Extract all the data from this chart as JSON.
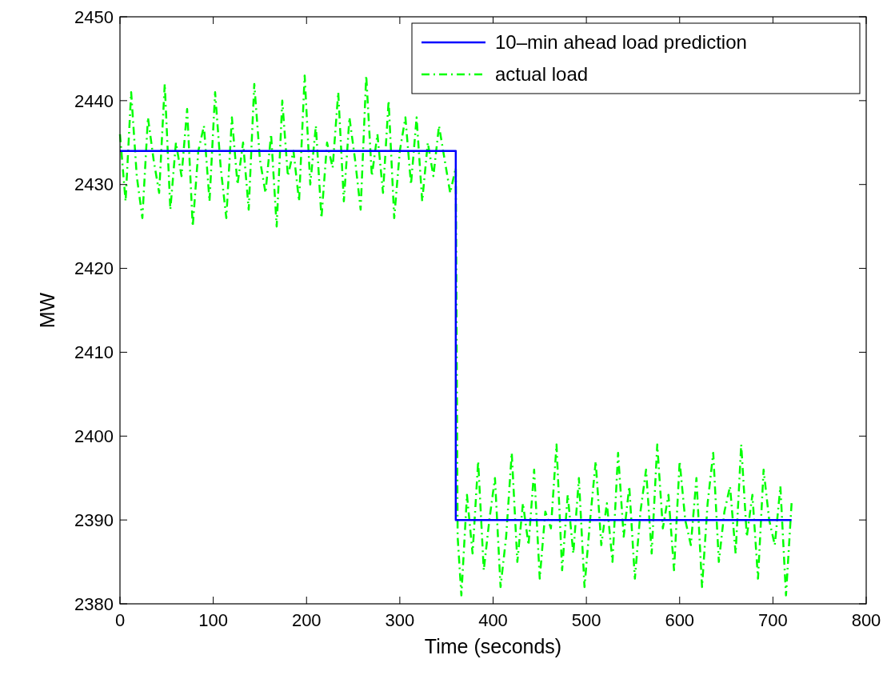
{
  "chart_data": {
    "type": "line",
    "xlabel": "Time (seconds)",
    "ylabel": "MW",
    "xlim": [
      0,
      800
    ],
    "xticks": [
      0,
      100,
      200,
      300,
      400,
      500,
      600,
      700,
      800
    ],
    "ylim": [
      2380,
      2450
    ],
    "yticks": [
      2380,
      2390,
      2400,
      2410,
      2420,
      2430,
      2440,
      2450
    ],
    "legend": "top right",
    "series": [
      {
        "name": "10–min ahead load prediction",
        "color": "#0000ff",
        "line_style": "solid",
        "x": [
          0,
          360,
          360,
          720
        ],
        "values": [
          2434,
          2434,
          2390,
          2390
        ]
      },
      {
        "name": "actual load",
        "color": "#00ff00",
        "line_style": "dashdot",
        "x": [
          0,
          6,
          12,
          18,
          24,
          30,
          36,
          42,
          48,
          54,
          60,
          66,
          72,
          78,
          84,
          90,
          96,
          102,
          108,
          114,
          120,
          126,
          132,
          138,
          144,
          150,
          156,
          162,
          168,
          174,
          180,
          186,
          192,
          198,
          204,
          210,
          216,
          222,
          228,
          234,
          240,
          246,
          252,
          258,
          264,
          270,
          276,
          282,
          288,
          294,
          300,
          306,
          312,
          318,
          324,
          330,
          336,
          342,
          348,
          354,
          360,
          362,
          366,
          372,
          378,
          384,
          390,
          396,
          402,
          408,
          414,
          420,
          426,
          432,
          438,
          444,
          450,
          456,
          462,
          468,
          474,
          480,
          486,
          492,
          498,
          504,
          510,
          516,
          522,
          528,
          534,
          540,
          546,
          552,
          558,
          564,
          570,
          576,
          582,
          588,
          594,
          600,
          606,
          612,
          618,
          624,
          630,
          636,
          642,
          648,
          654,
          660,
          666,
          672,
          678,
          684,
          690,
          696,
          702,
          708,
          714,
          720
        ],
        "values": [
          2436,
          2428,
          2441,
          2431,
          2426,
          2438,
          2433,
          2429,
          2442,
          2427,
          2435,
          2431,
          2439,
          2425,
          2434,
          2437,
          2428,
          2441,
          2432,
          2426,
          2438,
          2430,
          2435,
          2427,
          2442,
          2433,
          2429,
          2436,
          2425,
          2440,
          2431,
          2434,
          2428,
          2443,
          2430,
          2437,
          2426,
          2435,
          2432,
          2441,
          2428,
          2438,
          2433,
          2427,
          2443,
          2431,
          2436,
          2429,
          2440,
          2426,
          2434,
          2438,
          2430,
          2438,
          2428,
          2435,
          2431,
          2437,
          2433,
          2429,
          2432,
          2388,
          2381,
          2393,
          2386,
          2397,
          2384,
          2390,
          2395,
          2382,
          2388,
          2398,
          2385,
          2392,
          2387,
          2396,
          2383,
          2391,
          2389,
          2399,
          2384,
          2393,
          2386,
          2395,
          2382,
          2390,
          2397,
          2387,
          2392,
          2385,
          2398,
          2388,
          2394,
          2383,
          2391,
          2396,
          2386,
          2399,
          2389,
          2393,
          2384,
          2397,
          2390,
          2387,
          2395,
          2382,
          2392,
          2398,
          2385,
          2391,
          2394,
          2386,
          2399,
          2388,
          2393,
          2383,
          2396,
          2390,
          2387,
          2394,
          2381,
          2392
        ]
      }
    ]
  }
}
